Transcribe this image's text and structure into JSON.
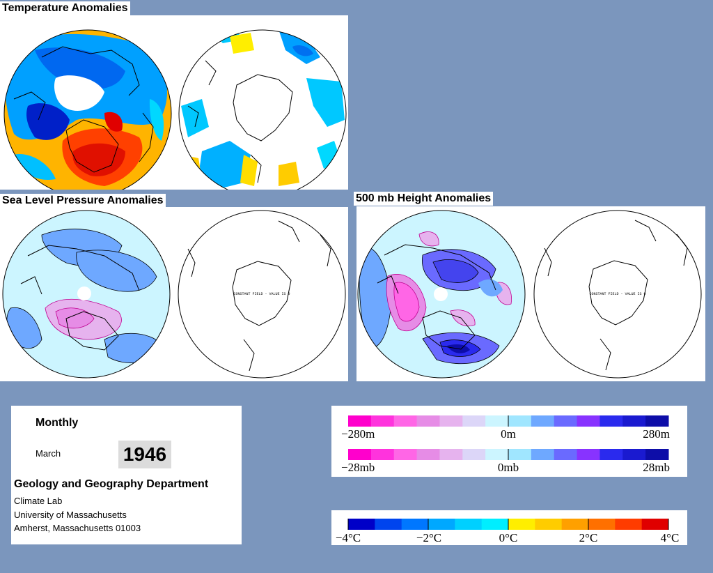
{
  "sections": {
    "temperature": {
      "title": "Temperature Anomalies"
    },
    "slp": {
      "title": "Sea Level Pressure Anomalies",
      "note": "CONSTANT FIELD - VALUE IS 0"
    },
    "height500": {
      "title": "500 mb Height Anomalies",
      "note": "CONSTANT FIELD - VALUE IS 0"
    }
  },
  "info": {
    "period": "Monthly",
    "month": "March",
    "year": "1946",
    "department": "Geology and Geography Department",
    "lab": "Climate Lab",
    "university": "University of Massachusetts",
    "address": "Amherst, Massachusetts 01003"
  },
  "legends": {
    "height": {
      "labels": [
        "−280m",
        "0m",
        "280m"
      ],
      "colors": [
        "#ff00cc",
        "#ff33dd",
        "#ff66e6",
        "#e68ce6",
        "#e6b3ee",
        "#dcd6f8",
        "#ccf5ff",
        "#a0e6ff",
        "#6ea8ff",
        "#6a6aff",
        "#8833ff",
        "#2a2aee",
        "#1a1ad0",
        "#0d0da8"
      ]
    },
    "pressure": {
      "labels": [
        "−28mb",
        "0mb",
        "28mb"
      ]
    },
    "temperature": {
      "labels": [
        "−4°C",
        "−2°C",
        "0°C",
        "2°C",
        "4°C"
      ],
      "colors": [
        "#0000c8",
        "#0044ee",
        "#0077ff",
        "#00a8ff",
        "#00d0ff",
        "#00eeff",
        "#ffee00",
        "#ffcc00",
        "#ffa000",
        "#ff7000",
        "#ff3c00",
        "#e00000"
      ]
    }
  }
}
